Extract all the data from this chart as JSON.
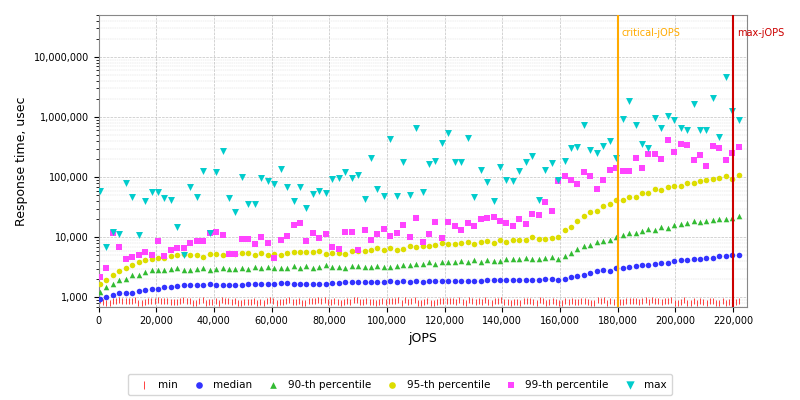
{
  "xlabel": "jOPS",
  "ylabel": "Response time, usec",
  "xlim": [
    0,
    225000
  ],
  "ylim": [
    700,
    50000000
  ],
  "critical_jops": 180000,
  "max_jops": 220000,
  "critical_label": "critical-jOPS",
  "max_label": "max-jOPS",
  "critical_line_color": "#ffaa00",
  "max_line_color": "#cc0000",
  "background_color": "#ffffff",
  "grid_color": "#bbbbbb",
  "series": {
    "min": {
      "color": "#ff2222",
      "marker": "|",
      "ms": 2,
      "label": "min"
    },
    "median": {
      "color": "#3333ff",
      "marker": "o",
      "ms": 4,
      "label": "median"
    },
    "p90": {
      "color": "#33bb33",
      "marker": "^",
      "ms": 4,
      "label": "90-th percentile"
    },
    "p95": {
      "color": "#dddd00",
      "marker": "o",
      "ms": 4,
      "label": "95-th percentile"
    },
    "p99": {
      "color": "#ff44ff",
      "marker": "s",
      "ms": 4,
      "label": "99-th percentile"
    },
    "max": {
      "color": "#00cccc",
      "marker": "v",
      "ms": 5,
      "label": "max"
    }
  },
  "yticks": [
    1000,
    10000,
    100000,
    1000000,
    10000000
  ],
  "xticks": [
    0,
    20000,
    40000,
    60000,
    80000,
    100000,
    120000,
    140000,
    160000,
    180000,
    200000,
    220000
  ]
}
